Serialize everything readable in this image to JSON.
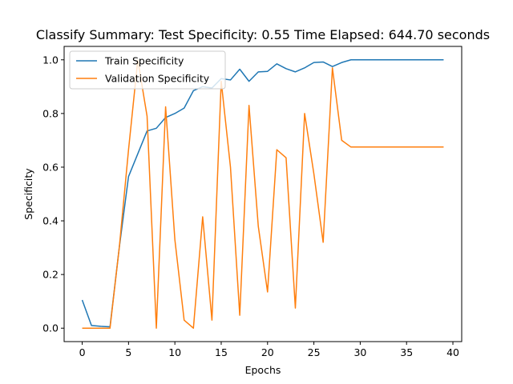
{
  "chart_data": {
    "type": "line",
    "title": "Classify Summary: Test Specificity: 0.55 Time Elapsed: 644.70 seconds",
    "xlabel": "Epochs",
    "ylabel": "Specificity",
    "xlim": [
      -1.95,
      40.95
    ],
    "ylim": [
      -0.05,
      1.05
    ],
    "xticks": [
      0,
      5,
      10,
      15,
      20,
      25,
      30,
      35,
      40
    ],
    "yticks": [
      0.0,
      0.2,
      0.4,
      0.6,
      0.8,
      1.0
    ],
    "xtick_labels": [
      "0",
      "5",
      "10",
      "15",
      "20",
      "25",
      "30",
      "35",
      "40"
    ],
    "ytick_labels": [
      "0.0",
      "0.2",
      "0.4",
      "0.6",
      "0.8",
      "1.0"
    ],
    "legend_position": "top-left",
    "grid": false,
    "x": [
      0,
      1,
      2,
      3,
      4,
      5,
      6,
      7,
      8,
      9,
      10,
      11,
      12,
      13,
      14,
      15,
      16,
      17,
      18,
      19,
      20,
      21,
      22,
      23,
      24,
      25,
      26,
      27,
      28,
      29,
      30,
      31,
      32,
      33,
      34,
      35,
      36,
      37,
      38,
      39
    ],
    "series": [
      {
        "name": "Train Specificity",
        "color": "#1f77b4",
        "values": [
          0.105,
          0.01,
          0.007,
          0.005,
          0.3,
          0.565,
          0.65,
          0.735,
          0.745,
          0.785,
          0.8,
          0.82,
          0.885,
          0.9,
          0.895,
          0.93,
          0.925,
          0.965,
          0.92,
          0.955,
          0.957,
          0.985,
          0.967,
          0.955,
          0.97,
          0.99,
          0.992,
          0.975,
          0.99,
          1.0,
          1.0,
          1.0,
          1.0,
          1.0,
          1.0,
          1.0,
          1.0,
          1.0,
          1.0,
          1.0
        ]
      },
      {
        "name": "Validation Specificity",
        "color": "#ff7f0e",
        "values": [
          0.0,
          0.0,
          0.0,
          0.0,
          0.3,
          0.665,
          1.0,
          0.79,
          0.0,
          0.825,
          0.33,
          0.03,
          0.0,
          0.415,
          0.03,
          0.92,
          0.6,
          0.048,
          0.83,
          0.38,
          0.135,
          0.665,
          0.635,
          0.075,
          0.8,
          0.575,
          0.32,
          0.97,
          0.7,
          0.675,
          0.675,
          0.675,
          0.675,
          0.675,
          0.675,
          0.675,
          0.675,
          0.675,
          0.675,
          0.675
        ]
      }
    ]
  }
}
